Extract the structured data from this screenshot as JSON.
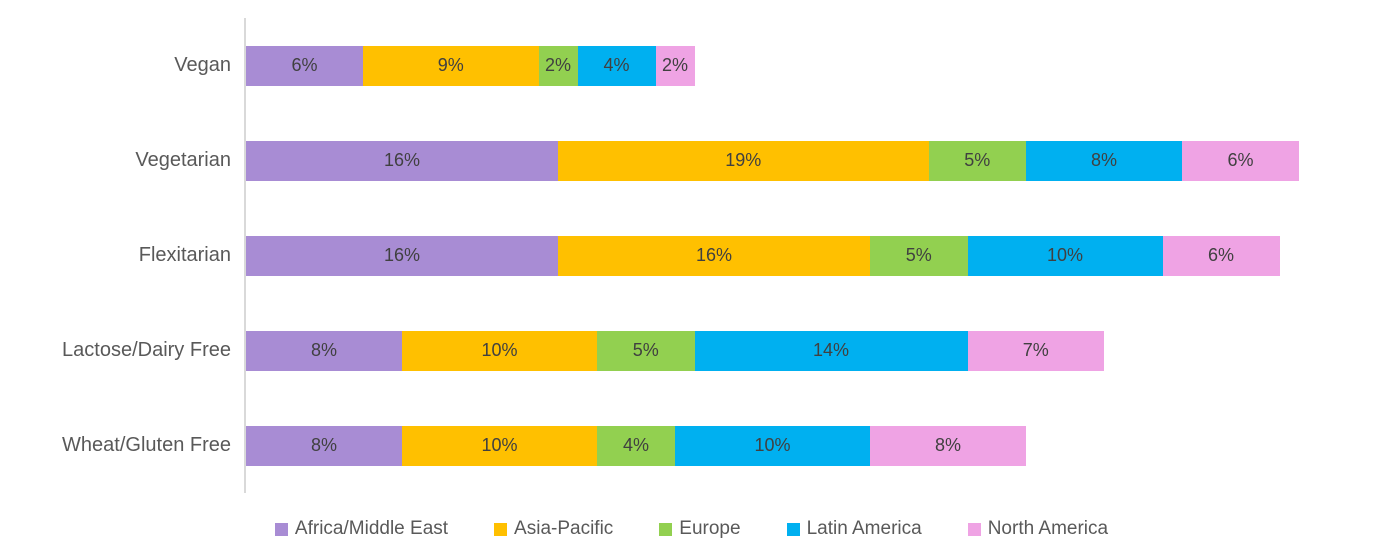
{
  "chart_data": {
    "type": "bar",
    "orientation": "horizontal",
    "stacked": true,
    "title": "",
    "grid": false,
    "legend_position": "bottom",
    "value_suffix": "%",
    "categories": [
      "Vegan",
      "Vegetarian",
      "Flexitarian",
      "Lactose/Dairy Free",
      "Wheat/Gluten Free"
    ],
    "series": [
      {
        "name": "Africa/Middle East",
        "color": "#A88CD4",
        "values": [
          6,
          16,
          16,
          8,
          8
        ]
      },
      {
        "name": "Asia-Pacific",
        "color": "#FFC000",
        "values": [
          9,
          19,
          16,
          10,
          10
        ]
      },
      {
        "name": "Europe",
        "color": "#92D050",
        "values": [
          2,
          5,
          5,
          5,
          4
        ]
      },
      {
        "name": "Latin America",
        "color": "#00B0F0",
        "values": [
          4,
          8,
          10,
          14,
          10
        ]
      },
      {
        "name": "North America",
        "color": "#EFA3E4",
        "values": [
          2,
          6,
          6,
          7,
          8
        ]
      }
    ],
    "colors": {
      "axis_line": "#D9D9D9",
      "category_label_text": "#595959",
      "data_label_text": "#404040",
      "legend_text": "#595959"
    }
  }
}
